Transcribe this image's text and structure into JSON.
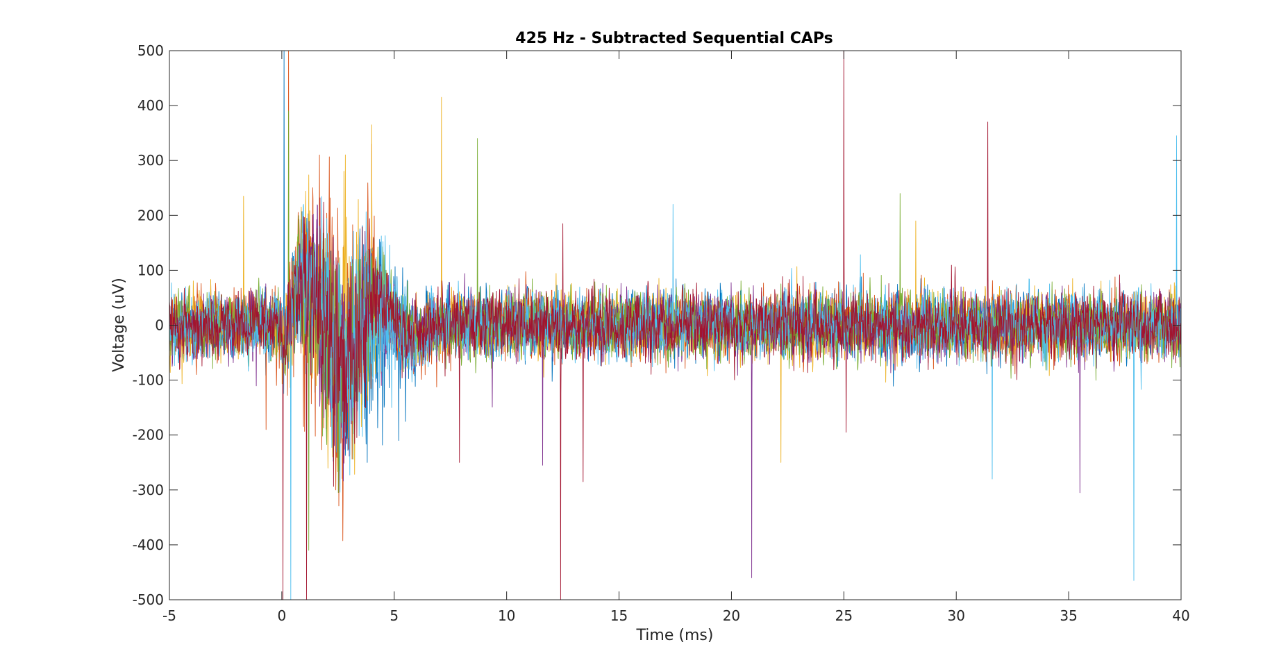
{
  "chart_data": {
    "type": "line",
    "title": "425 Hz - Subtracted Sequential CAPs",
    "xlabel": "Time (ms)",
    "ylabel": "Voltage (uV)",
    "xlim": [
      -5,
      40
    ],
    "ylim": [
      -500,
      500
    ],
    "xticks": [
      -5,
      0,
      5,
      10,
      15,
      20,
      25,
      30,
      35,
      40
    ],
    "yticks": [
      -500,
      -400,
      -300,
      -200,
      -100,
      0,
      100,
      200,
      300,
      400,
      500
    ],
    "x_tick_labels": [
      "-5",
      "0",
      "5",
      "10",
      "15",
      "20",
      "25",
      "30",
      "35",
      "40"
    ],
    "y_tick_labels": [
      "-500",
      "-400",
      "-300",
      "-200",
      "-100",
      "0",
      "100",
      "200",
      "300",
      "400",
      "500"
    ],
    "grid": false,
    "legend": "none",
    "baseline_noise_uV": 45,
    "series": [
      {
        "color": "#0072BD",
        "baseline_level": 0,
        "response_burst": {
          "t_ms": [
            0,
            6.5
          ],
          "peak_uV": 250
        },
        "spikes": [
          {
            "t": 0.1,
            "v": 500
          },
          {
            "t": 3.8,
            "v": -250
          },
          {
            "t": 5.2,
            "v": -210
          }
        ]
      },
      {
        "color": "#D95319",
        "baseline_level": 0,
        "response_burst": {
          "t_ms": [
            -0.5,
            5
          ],
          "peak_uV": 330
        },
        "spikes": [
          {
            "t": -0.7,
            "v": 500
          },
          {
            "t": 0.3,
            "v": 500
          },
          {
            "t": -0.7,
            "v": -190
          },
          {
            "t": 4.0,
            "v": 330
          }
        ]
      },
      {
        "color": "#EDB120",
        "baseline_level": 0,
        "response_burst": {
          "t_ms": [
            0,
            5
          ],
          "peak_uV": 290
        },
        "spikes": [
          {
            "t": -1.7,
            "v": 235
          },
          {
            "t": 7.1,
            "v": 415
          },
          {
            "t": 4.0,
            "v": 365
          },
          {
            "t": 22.2,
            "v": -250
          },
          {
            "t": 28.2,
            "v": 190
          }
        ]
      },
      {
        "color": "#7E2F8E",
        "baseline_level": 0,
        "response_burst": {
          "t_ms": [
            0,
            5
          ],
          "peak_uV": 220
        },
        "spikes": [
          {
            "t": 20.9,
            "v": -460
          },
          {
            "t": 35.5,
            "v": -305
          },
          {
            "t": 11.6,
            "v": -255
          }
        ]
      },
      {
        "color": "#77AC30",
        "baseline_level": 0,
        "response_burst": {
          "t_ms": [
            0,
            5
          ],
          "peak_uV": 260
        },
        "spikes": [
          {
            "t": 0.3,
            "v": 390
          },
          {
            "t": 8.7,
            "v": 340
          },
          {
            "t": 27.5,
            "v": 240
          },
          {
            "t": 1.2,
            "v": -410
          }
        ]
      },
      {
        "color": "#4DBEEE",
        "baseline_level": 0,
        "response_burst": {
          "t_ms": [
            0,
            6
          ],
          "peak_uV": 270
        },
        "spikes": [
          {
            "t": 0.4,
            "v": -500
          },
          {
            "t": 17.4,
            "v": 220
          },
          {
            "t": 31.6,
            "v": -280
          },
          {
            "t": 37.9,
            "v": -465
          },
          {
            "t": 39.8,
            "v": 345
          }
        ]
      },
      {
        "color": "#A2142F",
        "baseline_level": 0,
        "response_burst": {
          "t_ms": [
            0,
            5
          ],
          "peak_uV": 240
        },
        "spikes": [
          {
            "t": 0.05,
            "v": 500
          },
          {
            "t": 0.05,
            "v": -500
          },
          {
            "t": 1.1,
            "v": 500
          },
          {
            "t": 1.1,
            "v": -500
          },
          {
            "t": 12.4,
            "v": -500
          },
          {
            "t": 12.5,
            "v": 185
          },
          {
            "t": 13.4,
            "v": -285
          },
          {
            "t": 7.9,
            "v": -250
          },
          {
            "t": 25.0,
            "v": 500
          },
          {
            "t": 25.1,
            "v": -195
          },
          {
            "t": 31.4,
            "v": 370
          }
        ]
      }
    ]
  }
}
